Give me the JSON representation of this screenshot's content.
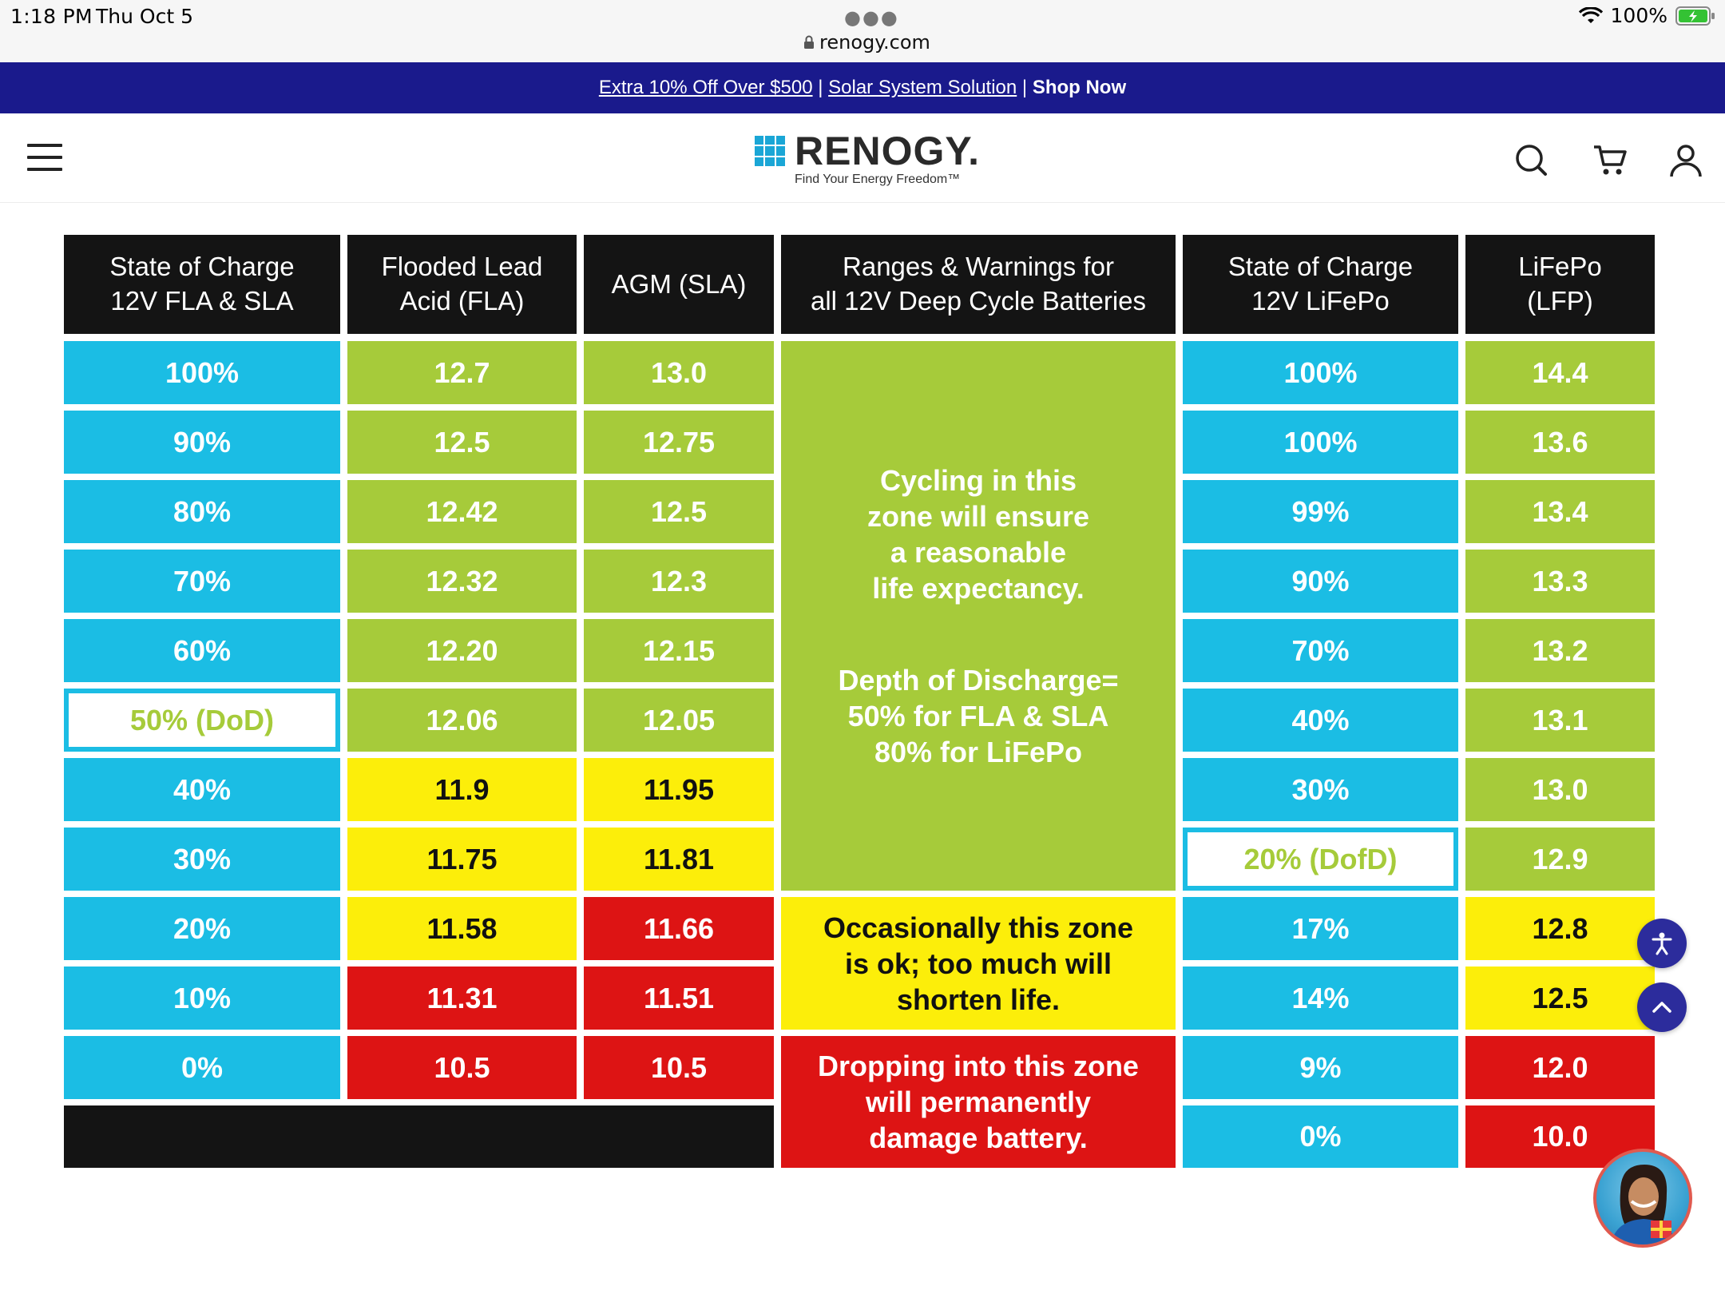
{
  "status_bar": {
    "time": "1:18 PM",
    "date": "Thu Oct 5",
    "url": "renogy.com",
    "battery": "100%"
  },
  "promo": {
    "offer_link": "Extra 10% Off Over $500",
    "solution_link": "Solar System Solution",
    "shop_now": "Shop Now"
  },
  "header": {
    "logo_text": "RENOGY.",
    "tagline": "Find Your Energy Freedom™"
  },
  "colors": {
    "blue": "#1bbde4",
    "green": "#a6cb3a",
    "yellow": "#fcee0a",
    "red": "#dd1414",
    "black": "#141414",
    "banner": "#1a1a8c"
  },
  "table": {
    "headers": {
      "soc_fla": [
        "State of Charge",
        "12V FLA & SLA"
      ],
      "fla": [
        "Flooded Lead",
        "Acid (FLA)"
      ],
      "agm": [
        "AGM (SLA)"
      ],
      "ranges": [
        "Ranges & Warnings for",
        "all 12V Deep Cycle Batteries"
      ],
      "soc_lfp": [
        "State of Charge",
        "12V LiFePo"
      ],
      "lfp": [
        "LiFePo",
        "(LFP)"
      ]
    },
    "soc_fla": [
      "100%",
      "90%",
      "80%",
      "70%",
      "60%",
      "50% (DoD)",
      "40%",
      "30%",
      "20%",
      "10%",
      "0%"
    ],
    "fla": [
      "12.7",
      "12.5",
      "12.42",
      "12.32",
      "12.20",
      "12.06",
      "11.9",
      "11.75",
      "11.58",
      "11.31",
      "10.5"
    ],
    "agm": [
      "13.0",
      "12.75",
      "12.5",
      "12.3",
      "12.15",
      "12.05",
      "11.95",
      "11.81",
      "11.66",
      "11.51",
      "10.5"
    ],
    "soc_lfp": [
      "100%",
      "100%",
      "99%",
      "90%",
      "70%",
      "40%",
      "30%",
      "20% (DofD)",
      "17%",
      "14%",
      "9%",
      "0%"
    ],
    "lfp": [
      "14.4",
      "13.6",
      "13.4",
      "13.3",
      "13.2",
      "13.1",
      "13.0",
      "12.9",
      "12.8",
      "12.5",
      "12.0",
      "10.0"
    ],
    "notes": {
      "green_1": [
        "Cycling in this",
        "zone will ensure",
        "a reasonable",
        "life expectancy."
      ],
      "green_2": [
        "Depth of Discharge=",
        "50% for FLA & SLA",
        "80% for LiFePo"
      ],
      "yellow": [
        "Occasionally this zone",
        "is ok; too much will",
        "shorten life."
      ],
      "red": [
        "Dropping into this zone",
        "will permanently",
        "damage battery."
      ]
    }
  }
}
